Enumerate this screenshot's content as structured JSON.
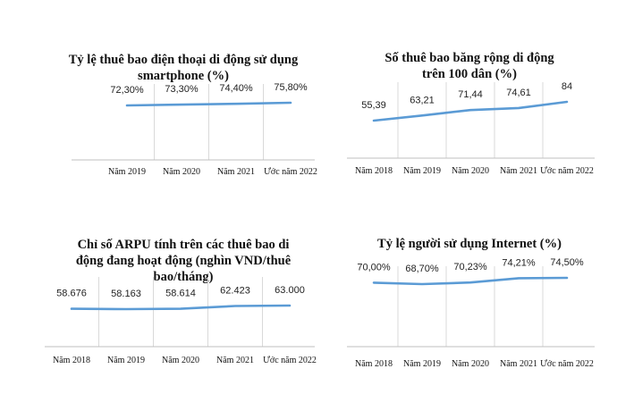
{
  "chart_data": [
    {
      "type": "line",
      "title": "Tỷ lệ thuê bao điện thoại di động sử dụng smartphone (%)",
      "title_lines": [
        "Tỷ lệ thuê bao điện thoại di động sử dụng",
        "smartphone (%)"
      ],
      "categories": [
        "Năm 2019",
        "Năm 2020",
        "Năm 2021",
        "Ước năm 2022"
      ],
      "series": [
        {
          "name": "smartphone",
          "values": [
            72.3,
            73.3,
            74.4,
            75.8
          ]
        }
      ],
      "data_labels": [
        "72,30%",
        "73,30%",
        "74,40%",
        "75,80%"
      ],
      "ylim": [
        0,
        100
      ],
      "grid": true,
      "color": "#5b9bd5"
    },
    {
      "type": "line",
      "title": "Số thuê bao băng rộng di động trên 100 dân (%)",
      "title_lines": [
        "Số thuê bao băng rộng di động",
        "trên 100 dân (%)"
      ],
      "categories": [
        "Năm 2018",
        "Năm 2019",
        "Năm 2020",
        "Năm 2021",
        "Ước năm 2022"
      ],
      "series": [
        {
          "name": "broadband",
          "values": [
            55.39,
            63.21,
            71.44,
            74.61,
            84
          ]
        }
      ],
      "data_labels": [
        "55,39",
        "63,21",
        "71,44",
        "74,61",
        "84"
      ],
      "ylim": [
        0,
        95
      ],
      "grid": true,
      "color": "#5b9bd5"
    },
    {
      "type": "line",
      "title": "Chỉ số ARPU tính trên các thuê bao di động đang hoạt động (nghìn VND/thuê bao/tháng)",
      "title_lines": [
        "Chỉ số ARPU tính trên các thuê bao di",
        "động đang hoạt động (nghìn VND/thuê",
        "bao/tháng)"
      ],
      "categories": [
        "Năm 2018",
        "Năm 2019",
        "Năm 2020",
        "Năm 2021",
        "Ước năm 2022"
      ],
      "series": [
        {
          "name": "ARPU",
          "values": [
            58.676,
            58.163,
            58.614,
            62.423,
            63.0
          ]
        }
      ],
      "data_labels": [
        "58.676",
        "58.163",
        "58.614",
        "62.423",
        "63.000"
      ],
      "ylim": [
        0,
        80
      ],
      "grid": true,
      "color": "#5b9bd5"
    },
    {
      "type": "line",
      "title": "Tỷ lệ người sử dụng Internet (%)",
      "title_lines": [
        "Tỷ lệ người sử dụng Internet (%)"
      ],
      "categories": [
        "Năm 2018",
        "Năm 2019",
        "Năm 2020",
        "Năm 2021",
        "Ước năm 2022"
      ],
      "series": [
        {
          "name": "internet",
          "values": [
            70.0,
            68.7,
            70.23,
            74.21,
            74.5
          ]
        }
      ],
      "data_labels": [
        "70,00%",
        "68,70%",
        "70,23%",
        "74,21%",
        "74,50%"
      ],
      "ylim": [
        0,
        95
      ],
      "grid": true,
      "color": "#5b9bd5"
    }
  ]
}
